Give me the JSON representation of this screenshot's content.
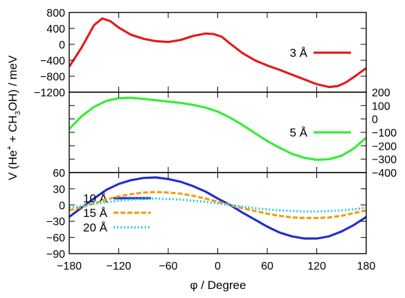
{
  "chart_data": {
    "type": "line",
    "xlabel": "φ / Degree",
    "ylabel_parts": {
      "pre": "V (He",
      "sup": "+",
      "mid1": " + CH",
      "sub": "3",
      "post": "OH) / meV"
    },
    "x_ticks": [
      "−180",
      "−120",
      "−60",
      "0",
      "60",
      "120",
      "180"
    ],
    "xlim": [
      -180,
      180
    ],
    "panels": [
      {
        "id": "top",
        "ylim": [
          -1200,
          800
        ],
        "y_ticks": [
          {
            "v": 800,
            "label": "800"
          },
          {
            "v": 400,
            "label": "400"
          },
          {
            "v": 0,
            "label": "0"
          },
          {
            "v": -400,
            "label": "−400"
          },
          {
            "v": -800,
            "label": "−800"
          },
          {
            "v": -1200,
            "label": "−1200"
          }
        ],
        "y_axis_side": "left",
        "series": [
          {
            "name": "3 Å",
            "color": "#e41a1c",
            "dash": "solid",
            "x": [
              -180,
              -165,
              -150,
              -140,
              -130,
              -120,
              -105,
              -90,
              -75,
              -60,
              -45,
              -30,
              -15,
              -5,
              5,
              15,
              30,
              45,
              60,
              75,
              90,
              105,
              120,
              135,
              145,
              155,
              165,
              175,
              180
            ],
            "y": [
              -560,
              -80,
              480,
              650,
              580,
              420,
              240,
              140,
              80,
              60,
              110,
              210,
              270,
              260,
              190,
              20,
              -220,
              -400,
              -530,
              -640,
              -760,
              -880,
              -1000,
              -1070,
              -1050,
              -960,
              -820,
              -670,
              -600
            ]
          }
        ]
      },
      {
        "id": "middle",
        "ylim": [
          -400,
          200
        ],
        "y_ticks": [
          {
            "v": 200,
            "label": "200"
          },
          {
            "v": 100,
            "label": "100"
          },
          {
            "v": 0,
            "label": "0"
          },
          {
            "v": -100,
            "label": "−100"
          },
          {
            "v": -200,
            "label": "−200"
          },
          {
            "v": -300,
            "label": "−300"
          },
          {
            "v": -400,
            "label": "−400"
          }
        ],
        "y_axis_side": "right",
        "series": [
          {
            "name": "5 Å",
            "color": "#33ee33",
            "dash": "solid",
            "x": [
              -180,
              -165,
              -150,
              -135,
              -120,
              -105,
              -90,
              -75,
              -60,
              -45,
              -30,
              -15,
              0,
              15,
              30,
              45,
              60,
              75,
              90,
              105,
              120,
              135,
              150,
              165,
              180
            ],
            "y": [
              -75,
              20,
              90,
              135,
              155,
              158,
              150,
              140,
              130,
              120,
              105,
              85,
              55,
              10,
              -45,
              -105,
              -165,
              -215,
              -260,
              -290,
              -305,
              -300,
              -275,
              -220,
              -140
            ]
          }
        ]
      },
      {
        "id": "bottom",
        "ylim": [
          -90,
          60
        ],
        "y_ticks": [
          {
            "v": 60,
            "label": "60"
          },
          {
            "v": 30,
            "label": "30"
          },
          {
            "v": 0,
            "label": "0"
          },
          {
            "v": -30,
            "label": "−30"
          },
          {
            "v": -60,
            "label": "−60"
          },
          {
            "v": -90,
            "label": "−90"
          }
        ],
        "y_axis_side": "left",
        "series": [
          {
            "name": "10 Å",
            "color": "#1f2fd0",
            "dash": "solid",
            "x": [
              -180,
              -165,
              -150,
              -135,
              -120,
              -105,
              -90,
              -75,
              -60,
              -45,
              -30,
              -15,
              0,
              15,
              30,
              45,
              60,
              75,
              90,
              105,
              120,
              135,
              150,
              165,
              180
            ],
            "y": [
              -22,
              -5,
              12,
              28,
              39,
              46,
              50,
              51,
              48,
              43,
              35,
              25,
              12,
              0,
              -14,
              -27,
              -40,
              -51,
              -58,
              -62,
              -62,
              -58,
              -49,
              -37,
              -22
            ]
          },
          {
            "name": "15 Å",
            "color": "#f39c12",
            "dash": "dashed",
            "x": [
              -180,
              -165,
              -150,
              -135,
              -120,
              -105,
              -90,
              -75,
              -60,
              -45,
              -30,
              -15,
              0,
              15,
              30,
              45,
              60,
              75,
              90,
              105,
              120,
              135,
              150,
              165,
              180
            ],
            "y": [
              -10,
              -4,
              3,
              10,
              16,
              20,
              23,
              24,
              23,
              21,
              17,
              12,
              6,
              0,
              -6,
              -11,
              -16,
              -20,
              -23,
              -24,
              -24,
              -23,
              -20,
              -15,
              -10
            ]
          },
          {
            "name": "20 Å",
            "color": "#20d0e0",
            "dash": "dotted",
            "x": [
              -180,
              -165,
              -150,
              -135,
              -120,
              -105,
              -90,
              -75,
              -60,
              -45,
              -30,
              -15,
              0,
              15,
              30,
              45,
              60,
              75,
              90,
              105,
              120,
              135,
              150,
              165,
              180
            ],
            "y": [
              -5,
              -2,
              2,
              5,
              8,
              10,
              11,
              12,
              11,
              10,
              8,
              6,
              3,
              0,
              -3,
              -6,
              -8,
              -10,
              -11,
              -12,
              -12,
              -11,
              -10,
              -8,
              -5
            ]
          }
        ]
      }
    ]
  }
}
